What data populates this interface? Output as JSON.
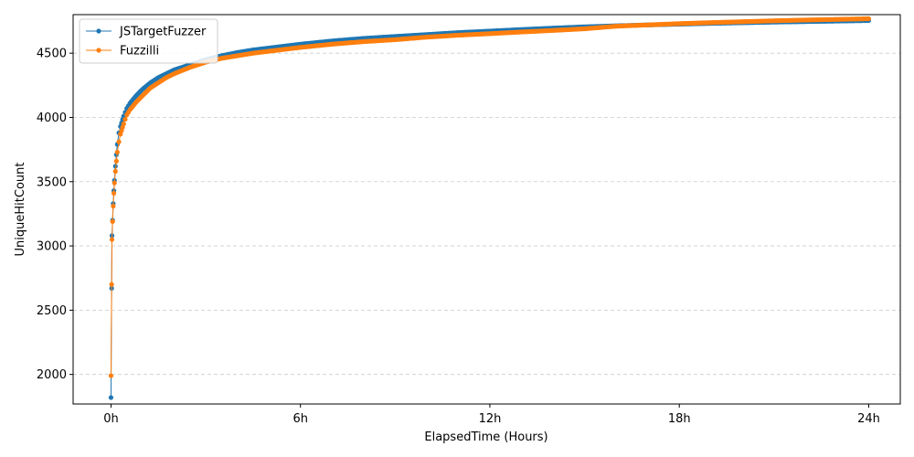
{
  "chart_data": {
    "type": "line",
    "xlabel": "ElapsedTime (Hours)",
    "ylabel": "UniqueHitCount",
    "xlim": [
      -1.2,
      25.0
    ],
    "ylim": [
      1770,
      4800
    ],
    "xticks": [
      0,
      6,
      12,
      18,
      24
    ],
    "xtick_labels": [
      "0h",
      "6h",
      "12h",
      "18h",
      "24h"
    ],
    "yticks": [
      2000,
      2500,
      3000,
      3500,
      4000,
      4500
    ],
    "ytick_labels": [
      "2000",
      "2500",
      "3000",
      "3500",
      "4000",
      "4500"
    ],
    "grid": "horizontal dashed",
    "legend": "top-left",
    "series": [
      {
        "name": "JSTargetFuzzer",
        "color": "#1f77b4",
        "x": [
          0,
          0.02,
          0.03,
          0.05,
          0.07,
          0.09,
          0.11,
          0.14,
          0.17,
          0.2,
          0.25,
          0.3,
          0.4,
          0.5,
          0.6,
          0.8,
          1.0,
          1.25,
          1.5,
          1.75,
          2.0,
          2.5,
          3.0,
          3.5,
          4.0,
          4.5,
          5.0,
          6.0,
          7.0,
          8.0,
          9.0,
          10.0,
          11.0,
          12.0,
          13.0,
          14.0,
          15.0,
          16.0,
          17.0,
          18.0,
          19.0,
          20.0,
          21.0,
          22.0,
          23.0,
          24.0
        ],
        "y": [
          1820,
          2670,
          3080,
          3200,
          3330,
          3430,
          3510,
          3620,
          3710,
          3790,
          3880,
          3930,
          4010,
          4070,
          4110,
          4170,
          4220,
          4270,
          4310,
          4340,
          4370,
          4410,
          4450,
          4480,
          4505,
          4525,
          4540,
          4570,
          4595,
          4615,
          4630,
          4645,
          4660,
          4672,
          4684,
          4695,
          4705,
          4713,
          4720,
          4726,
          4732,
          4737,
          4742,
          4746,
          4750,
          4754
        ]
      },
      {
        "name": "Fuzzilli",
        "color": "#ff7f0e",
        "x": [
          0,
          0.02,
          0.03,
          0.05,
          0.07,
          0.09,
          0.11,
          0.14,
          0.17,
          0.2,
          0.25,
          0.3,
          0.4,
          0.5,
          0.6,
          0.8,
          1.0,
          1.25,
          1.5,
          1.75,
          2.0,
          2.5,
          3.0,
          3.5,
          4.0,
          4.5,
          5.0,
          6.0,
          7.0,
          8.0,
          9.0,
          10.0,
          11.0,
          12.0,
          13.0,
          14.0,
          15.0,
          16.0,
          17.0,
          18.0,
          19.0,
          20.0,
          21.0,
          22.0,
          23.0,
          24.0
        ],
        "y": [
          1990,
          2700,
          3050,
          3190,
          3310,
          3410,
          3490,
          3580,
          3660,
          3730,
          3810,
          3870,
          3950,
          4020,
          4060,
          4120,
          4170,
          4230,
          4270,
          4310,
          4340,
          4390,
          4430,
          4460,
          4480,
          4500,
          4515,
          4545,
          4570,
          4590,
          4605,
          4625,
          4640,
          4652,
          4665,
          4677,
          4690,
          4710,
          4720,
          4730,
          4738,
          4745,
          4752,
          4758,
          4763,
          4768
        ]
      }
    ]
  }
}
